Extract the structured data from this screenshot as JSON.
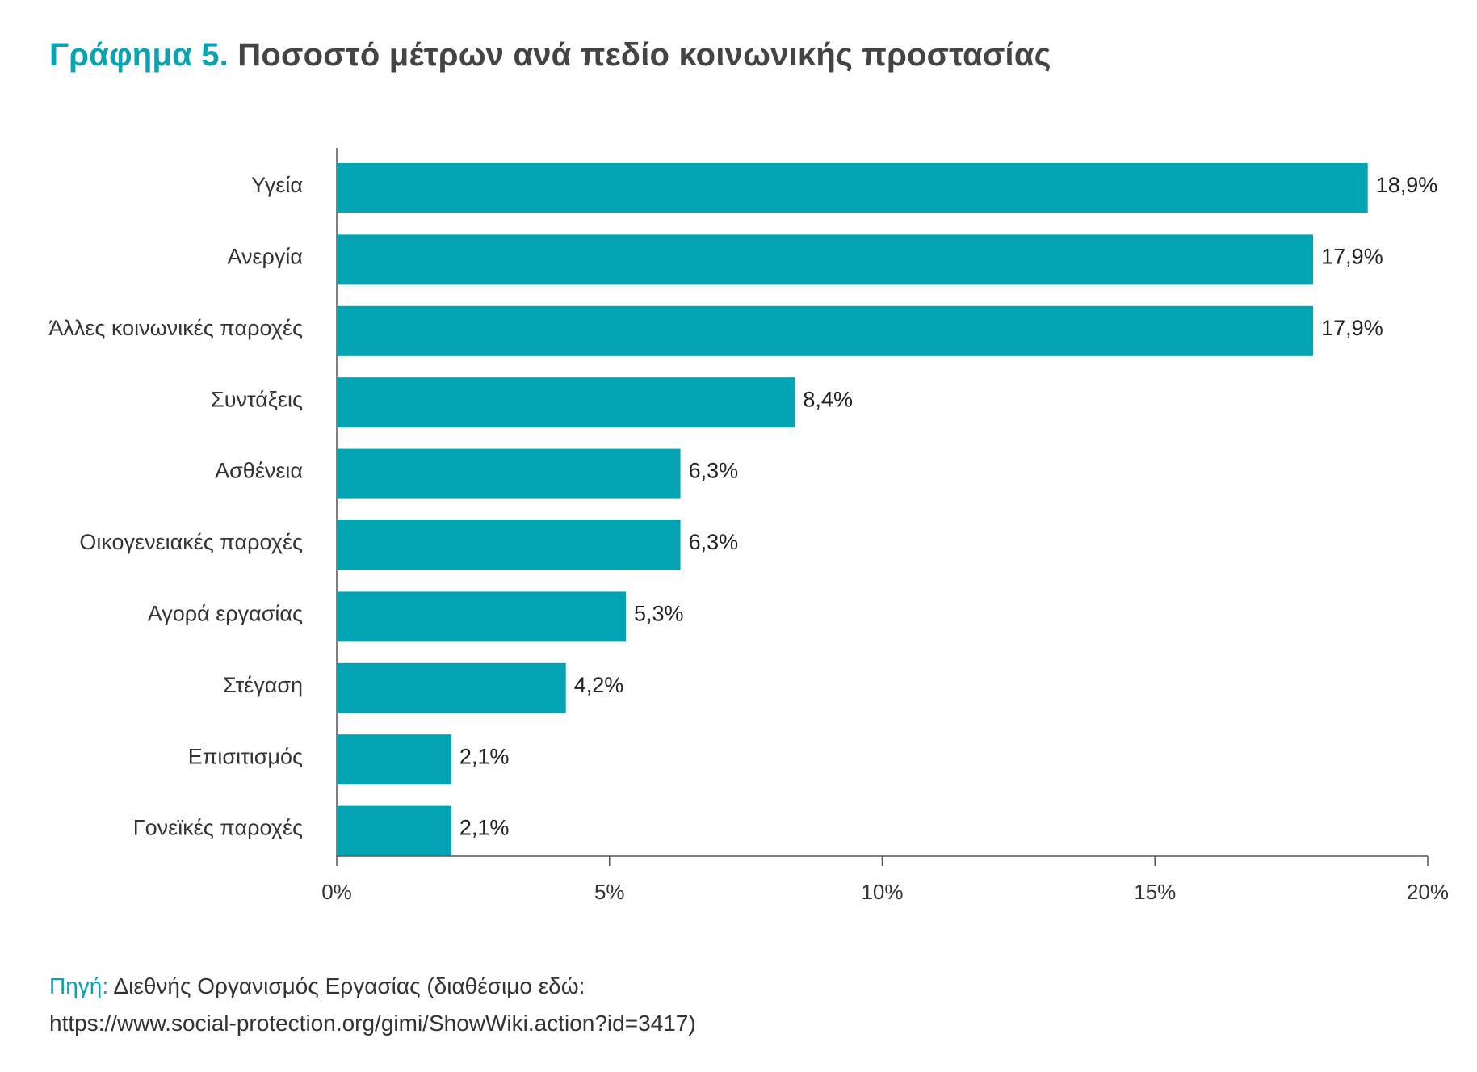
{
  "title": {
    "prefix": "Γράφημα 5.",
    "main": "Ποσοστό μέτρων ανά πεδίο κοινωνικής προστασίας"
  },
  "colors": {
    "bar": "#02a3b2",
    "accent": "#0aa3b1",
    "axis": "#555555",
    "text": "#333333"
  },
  "chart_data": {
    "type": "bar",
    "orientation": "horizontal",
    "categories": [
      "Υγεία",
      "Ανεργία",
      "Άλλες κοινωνικές παροχές",
      "Συντάξεις",
      "Ασθένεια",
      "Οικογενειακές παροχές",
      "Αγορά εργασίας",
      "Στέγαση",
      "Επισιτισμός",
      "Γονεϊκές παροχές"
    ],
    "values": [
      18.9,
      17.9,
      17.9,
      8.4,
      6.3,
      6.3,
      5.3,
      4.2,
      2.1,
      2.1
    ],
    "value_labels": [
      "18,9%",
      "17,9%",
      "17,9%",
      "8,4%",
      "6,3%",
      "6,3%",
      "5,3%",
      "4,2%",
      "2,1%",
      "2,1%"
    ],
    "xlim": [
      0,
      20
    ],
    "xticks": [
      0,
      5,
      10,
      15,
      20
    ],
    "xtick_labels": [
      "0%",
      "5%",
      "10%",
      "15%",
      "20%"
    ],
    "grid": false,
    "legend": "none"
  },
  "source": {
    "label": "Πηγή:",
    "text": "Διεθνής Οργανισμός Εργασίας (διαθέσιμο εδώ:",
    "url": "https://www.social-protection.org/gimi/ShowWiki.action?id=3417)"
  }
}
